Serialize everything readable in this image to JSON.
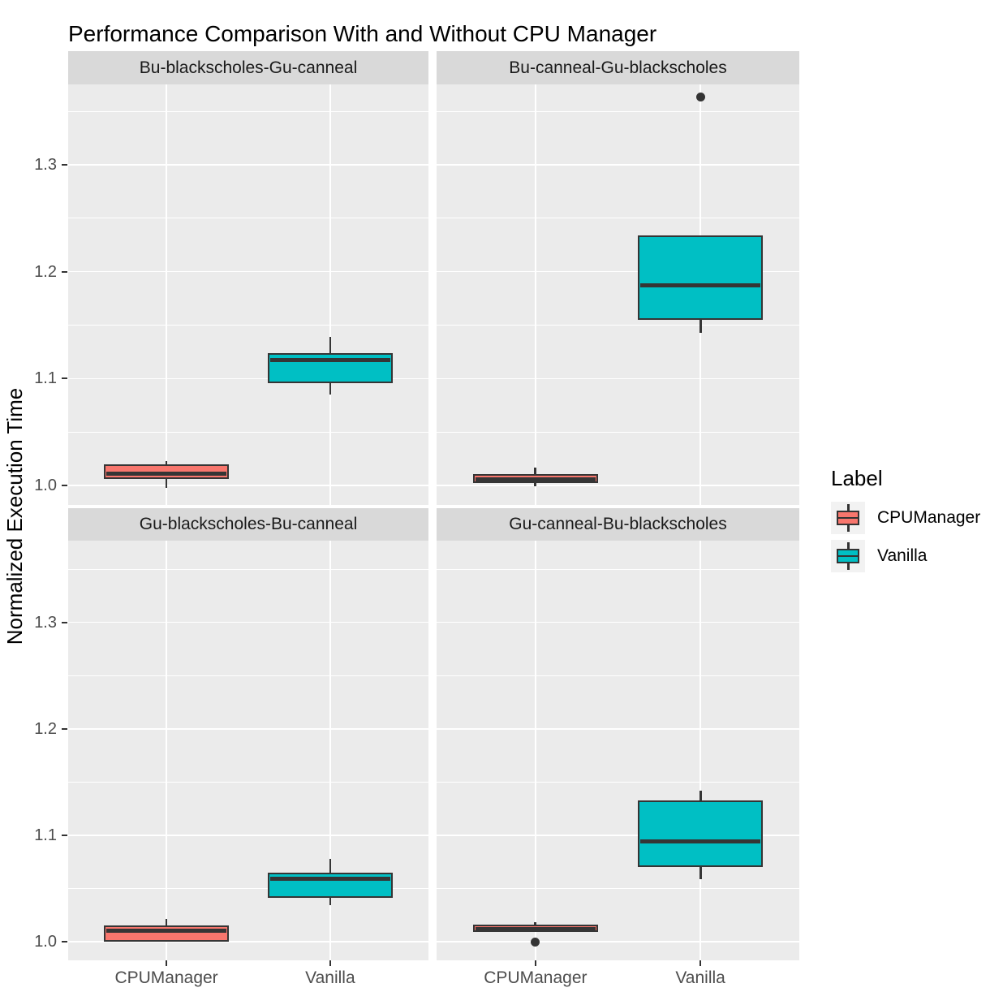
{
  "chart_data": {
    "type": "boxplot",
    "title": "Performance Comparison With and Without CPU Manager",
    "ylabel": "Normalized Execution Time",
    "xlabel": "",
    "y_ticks": [
      1.0,
      1.1,
      1.2,
      1.3
    ],
    "y_minor_ticks": [
      1.05,
      1.15,
      1.25,
      1.35
    ],
    "ylim": [
      0.982,
      1.377
    ],
    "x_categories": [
      "CPUManager",
      "Vanilla"
    ],
    "grid": "white major+minor horizontal lines and major vertical lines on grey panel",
    "legend": {
      "title": "Label",
      "position": "right",
      "entries": [
        {
          "label": "CPUManager",
          "color": "#F8766D"
        },
        {
          "label": "Vanilla",
          "color": "#00BFC4"
        }
      ]
    },
    "facets": [
      {
        "label": "Bu-blackscholes-Gu-canneal",
        "row": 0,
        "col": 0,
        "boxes": [
          {
            "group": "CPUManager",
            "whisker_low": 0.998,
            "q1": 1.006,
            "median": 1.011,
            "q3": 1.02,
            "whisker_high": 1.023,
            "outliers": []
          },
          {
            "group": "Vanilla",
            "whisker_low": 1.085,
            "q1": 1.096,
            "median": 1.117,
            "q3": 1.124,
            "whisker_high": 1.139,
            "outliers": []
          }
        ]
      },
      {
        "label": "Bu-canneal-Gu-blackscholes",
        "row": 0,
        "col": 1,
        "boxes": [
          {
            "group": "CPUManager",
            "whisker_low": 0.999,
            "q1": 1.002,
            "median": 1.006,
            "q3": 1.011,
            "whisker_high": 1.017,
            "outliers": []
          },
          {
            "group": "Vanilla",
            "whisker_low": 1.143,
            "q1": 1.155,
            "median": 1.187,
            "q3": 1.234,
            "whisker_high": 1.234,
            "outliers": [
              1.363
            ]
          }
        ]
      },
      {
        "label": "Gu-blackscholes-Bu-canneal",
        "row": 1,
        "col": 0,
        "boxes": [
          {
            "group": "CPUManager",
            "whisker_low": 1.0,
            "q1": 1.0,
            "median": 1.01,
            "q3": 1.015,
            "whisker_high": 1.021,
            "outliers": []
          },
          {
            "group": "Vanilla",
            "whisker_low": 1.034,
            "q1": 1.041,
            "median": 1.059,
            "q3": 1.065,
            "whisker_high": 1.078,
            "outliers": []
          }
        ]
      },
      {
        "label": "Gu-canneal-Bu-blackscholes",
        "row": 1,
        "col": 1,
        "boxes": [
          {
            "group": "CPUManager",
            "whisker_low": 1.009,
            "q1": 1.009,
            "median": 1.012,
            "q3": 1.016,
            "whisker_high": 1.018,
            "outliers": [
              1.0
            ]
          },
          {
            "group": "Vanilla",
            "whisker_low": 1.059,
            "q1": 1.07,
            "median": 1.094,
            "q3": 1.133,
            "whisker_high": 1.142,
            "outliers": []
          }
        ]
      }
    ],
    "colors": {
      "panel_bg": "#EBEBEB",
      "strip_bg": "#D9D9D9",
      "gridline": "#FFFFFF",
      "box_border": "#353535",
      "axis_text": "#4D4D4D",
      "title_text": "#000000",
      "legend_key_bg": "#F2F2F2",
      "outlier": "#333333"
    }
  }
}
